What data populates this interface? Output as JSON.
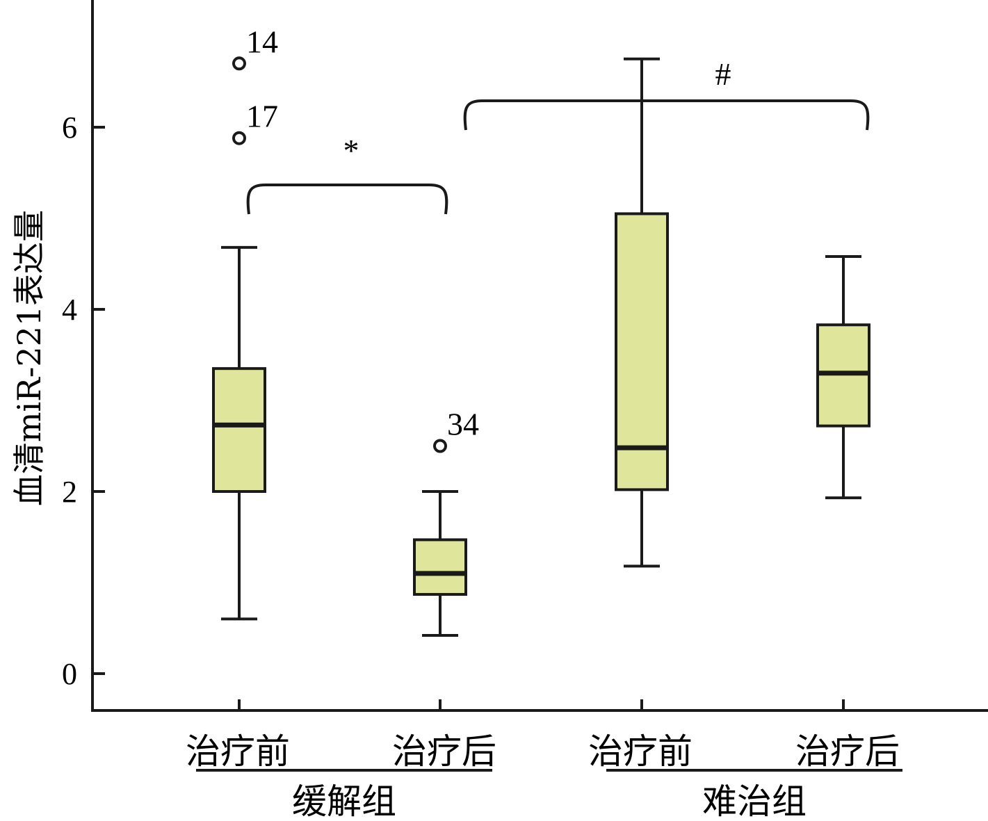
{
  "chart_data": {
    "type": "box",
    "ylabel": "血清miR-221表达量",
    "ylim": [
      -0.4,
      7.4
    ],
    "yticks": [
      0,
      2,
      4,
      6
    ],
    "categories": [
      "治疗前",
      "治疗后",
      "治疗前",
      "治疗后"
    ],
    "groups": [
      {
        "label": "缓解组",
        "members": [
          0,
          1
        ]
      },
      {
        "label": "难治组",
        "members": [
          2,
          3
        ]
      }
    ],
    "series": [
      {
        "boxes": [
          {
            "min": 0.6,
            "q1": 2.0,
            "median": 2.73,
            "q3": 3.35,
            "max": 4.68
          },
          {
            "min": 0.42,
            "q1": 0.87,
            "median": 1.1,
            "q3": 1.47,
            "max": 2.0
          },
          {
            "min": 1.18,
            "q1": 2.02,
            "median": 2.48,
            "q3": 5.05,
            "max": 6.75
          },
          {
            "min": 1.93,
            "q1": 2.72,
            "median": 3.3,
            "q3": 3.83,
            "max": 4.58
          }
        ]
      }
    ],
    "outliers": [
      {
        "box": 0,
        "value": 6.7,
        "label": "14"
      },
      {
        "box": 0,
        "value": 5.88,
        "label": "17"
      },
      {
        "box": 1,
        "value": 2.5,
        "label": "34"
      }
    ],
    "significance": [
      {
        "from": 0,
        "to": 1,
        "label": "*"
      },
      {
        "from": 1,
        "to": 2,
        "label": "#"
      }
    ],
    "box_color": "#dfe59a",
    "grid": false,
    "legend": "none"
  }
}
